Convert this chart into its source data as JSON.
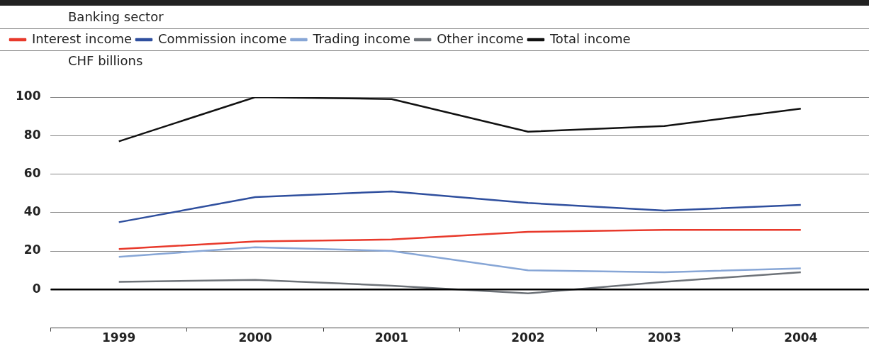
{
  "chart_data": {
    "type": "line",
    "title": "Banking sector",
    "ylabel": "CHF billions",
    "categories": [
      "1999",
      "2000",
      "2001",
      "2002",
      "2003",
      "2004"
    ],
    "series": [
      {
        "name": "Interest income",
        "color": "#e8392b",
        "values": [
          21,
          25,
          26,
          30,
          31,
          31
        ]
      },
      {
        "name": "Commission income",
        "color": "#2f4f9e",
        "values": [
          35,
          48,
          51,
          45,
          41,
          44
        ]
      },
      {
        "name": "Trading income",
        "color": "#87a6d6",
        "values": [
          17,
          22,
          20,
          10,
          9,
          11
        ]
      },
      {
        "name": "Other income",
        "color": "#6d7278",
        "values": [
          4,
          5,
          2,
          -2,
          4,
          9
        ]
      },
      {
        "name": "Total income",
        "color": "#111111",
        "values": [
          77,
          100,
          99,
          82,
          85,
          94
        ]
      }
    ],
    "ylim": [
      -20,
      100
    ],
    "yticks": [
      0,
      20,
      40,
      60,
      80,
      100
    ],
    "grid": "y",
    "legend": "top",
    "marker": "none",
    "line_style": "solid",
    "ref_lines": [
      {
        "axis": "y",
        "value": 0,
        "color": "#000000"
      }
    ]
  }
}
